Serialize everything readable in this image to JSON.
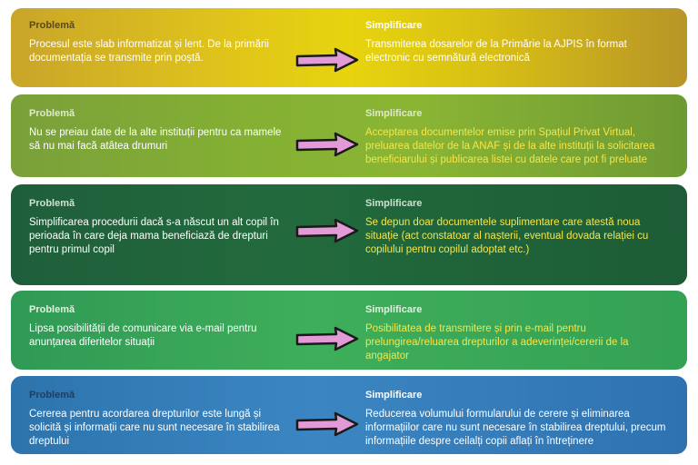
{
  "colors": {
    "arrow_fill": "#e39bd7",
    "arrow_stroke": "#1a1a1a",
    "highlight_text": "#f6e64a"
  },
  "rows": [
    {
      "problem_label": "Problemă",
      "problem_text": "Procesul este slab informatizat și lent. De la primării documentația se transmite prin poștă.",
      "solution_label": "Simplificare",
      "solution_text": "Transmiterea dosarelor de la Primărie la AJPIS în format electronic cu semnătură electronică"
    },
    {
      "problem_label": "Problemă",
      "problem_text": "Nu se preiau date de la alte instituții pentru ca mamele să nu mai facă atâtea drumuri",
      "solution_label": "Simplificare",
      "solution_text": "Acceptarea documentelor emise prin Spațiul Privat Virtual, preluarea datelor de la ANAF și de la alte instituții la solicitarea beneficiarului și publicarea listei cu datele care pot fi preluate"
    },
    {
      "problem_label": "Problemă",
      "problem_text": "Simplificarea procedurii dacă s-a născut un alt copil în perioada în care deja mama beneficiază de drepturi pentru primul copil",
      "solution_label": "Simplificare",
      "solution_text": "Se depun doar documentele suplimentare care atestă noua situație (act constatoar al nașterii, eventual dovada relației cu copilului pentru copilul adoptat etc.)"
    },
    {
      "problem_label": "Problemă",
      "problem_text": "Lipsa posibilității de comunicare via e-mail pentru anunțarea diferitelor situații",
      "solution_label": "Simplificare",
      "solution_text": "Posibilitatea de transmitere și prin e-mail pentru prelungirea/reluarea drepturilor a adeverinței/cererii de la angajator"
    },
    {
      "problem_label": "Problemă",
      "problem_text": "Cererea pentru acordarea drepturilor este lungă și solicită și informații care nu sunt necesare în stabilirea dreptului",
      "solution_label": "Simplificare",
      "solution_text": "Reducerea volumului formularului de cerere și eliminarea informațiilor care nu sunt necesare în stabilirea dreptului, precum informațiile despre ceilalți copii aflați în întreținere"
    }
  ]
}
